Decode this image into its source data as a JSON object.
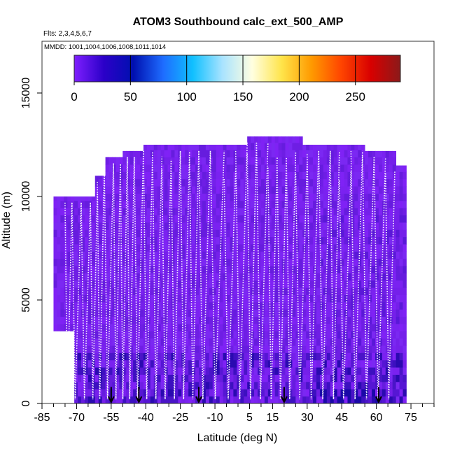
{
  "chart_data": {
    "type": "heatmap",
    "title": "ATOM3 Southbound calc_ext_500_AMP",
    "subtitle_flights": "Flts: 2,3,4,5,6,7",
    "subtitle_dates": "MMDD: 1001,1004,1006,1008,1011,1014",
    "xlabel": "Latitude (deg N)",
    "ylabel": "Altitude (m)",
    "xlim": [
      -85,
      85
    ],
    "ylim": [
      0,
      17500
    ],
    "x_tick_labels": [
      -85,
      -70,
      -55,
      -40,
      -25,
      -10,
      5,
      15,
      30,
      45,
      60,
      75
    ],
    "x_minor_ticks": [
      -80,
      -75,
      -65,
      -60,
      -50,
      -45,
      -35,
      -30,
      -20,
      -15,
      -5,
      0,
      10,
      20,
      25,
      35,
      40,
      50,
      55,
      65,
      70,
      80,
      85
    ],
    "y_ticks": [
      0,
      5000,
      10000,
      15000
    ],
    "colorbar": {
      "range": [
        0,
        290
      ],
      "tick_labels": [
        0,
        50,
        100,
        150,
        200,
        250
      ],
      "colors": [
        "#7f1fff",
        "#2b00c8",
        "#0010b0",
        "#1e6cff",
        "#10c0ff",
        "#a9e3ff",
        "#ffffe0",
        "#ffe44a",
        "#ff9a00",
        "#ff4500",
        "#d80000",
        "#8b1a1a"
      ]
    },
    "grid": false,
    "legend_placement": "top",
    "arrow_latitudes": [
      -55,
      -43,
      -17,
      20,
      61
    ],
    "profile_latitudes": [
      -75,
      -72,
      -68,
      -64,
      -61,
      -58,
      -54,
      -51,
      -48,
      -45,
      -41,
      -37,
      -33,
      -29,
      -25,
      -21,
      -17,
      -12,
      -6,
      -1,
      4,
      8,
      13,
      17,
      21,
      25,
      30,
      35,
      40,
      44,
      49,
      54,
      59,
      64,
      68
    ],
    "profile_top_altitude_m": 12000,
    "data_extent": {
      "lat_range": [
        -80,
        72
      ],
      "alt_range": [
        0,
        12900
      ],
      "typical_value": 10,
      "max_local_value": 60
    }
  }
}
